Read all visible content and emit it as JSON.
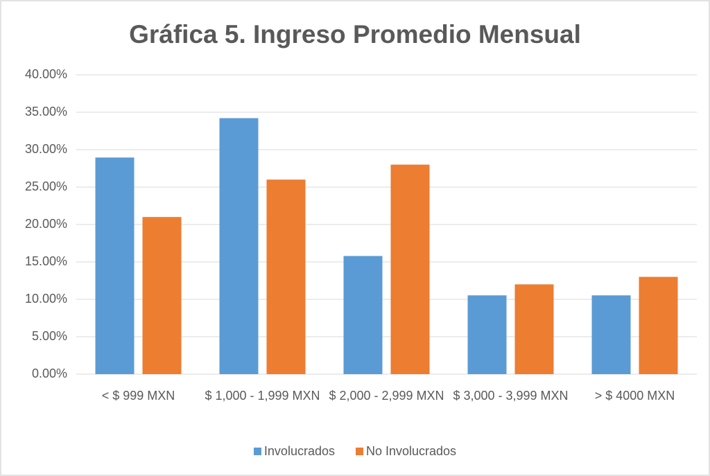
{
  "chart_data": {
    "type": "bar",
    "title": "Gráfica 5. Ingreso Promedio Mensual",
    "categories": [
      "< $ 999 MXN",
      "$ 1,000 - 1,999 MXN",
      "$ 2,000 - 2,999 MXN",
      "$ 3,000 - 3,999 MXN",
      "> $ 4000 MXN"
    ],
    "series": [
      {
        "name": "Involucrados",
        "color": "#5b9bd5",
        "values": [
          28.95,
          34.21,
          15.79,
          10.53,
          10.53
        ]
      },
      {
        "name": "No Involucrados",
        "color": "#ed7d31",
        "values": [
          21,
          26,
          28,
          12,
          13
        ]
      }
    ],
    "ylim": [
      0,
      40
    ],
    "yticks": [
      {
        "value": 0,
        "label": "0.00%"
      },
      {
        "value": 5,
        "label": "5.00%"
      },
      {
        "value": 10,
        "label": "10.00%"
      },
      {
        "value": 15,
        "label": "15.00%"
      },
      {
        "value": 20,
        "label": "20.00%"
      },
      {
        "value": 25,
        "label": "25.00%"
      },
      {
        "value": 30,
        "label": "30.00%"
      },
      {
        "value": 35,
        "label": "35.00%"
      },
      {
        "value": 40,
        "label": "40.00%"
      }
    ],
    "grid": true,
    "legend": "bottom"
  }
}
